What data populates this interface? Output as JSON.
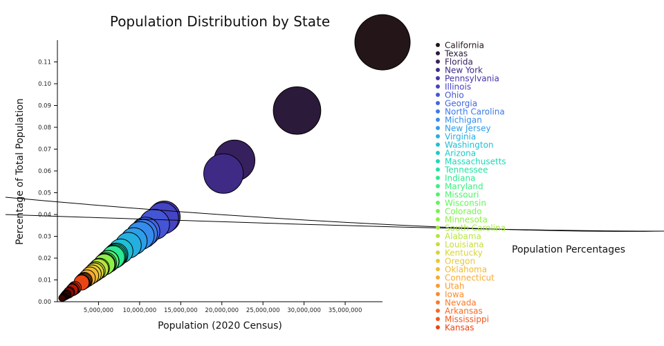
{
  "chart_data": {
    "type": "scatter",
    "title": "Population Distribution by State",
    "xlabel": "Population (2020 Census)",
    "ylabel": "Percentage of Total Population",
    "xlim": [
      0,
      39538223
    ],
    "ylim": [
      0,
      0.12
    ],
    "x_ticks": [
      5000000,
      10000000,
      15000000,
      20000000,
      25000000,
      30000000,
      35000000
    ],
    "x_tick_labels": [
      "5,000,000",
      "10,000,000",
      "15,000,000",
      "20,000,000",
      "25,000,000",
      "30,000,000",
      "35,000,000"
    ],
    "y_ticks": [
      0,
      0.01,
      0.02,
      0.03,
      0.04,
      0.05,
      0.06,
      0.07,
      0.08,
      0.09,
      0.1,
      0.11
    ],
    "y_tick_labels": [
      "0.00",
      "0.01",
      "0.02",
      "0.03",
      "0.04",
      "0.05",
      "0.06",
      "0.07",
      "0.08",
      "0.09",
      "0.10",
      "0.11"
    ],
    "annotation": "Population Percentages",
    "legend_position": "right",
    "grid": false,
    "legend_labels": [
      "California",
      "Texas",
      "Florida",
      "New York",
      "Pennsylvania",
      "Illinois",
      "Ohio",
      "Georgia",
      "North Carolina",
      "Michigan",
      "New Jersey",
      "Virginia",
      "Washington",
      "Arizona",
      "Massachusetts",
      "Tennessee",
      "Indiana",
      "Maryland",
      "Missouri",
      "Wisconsin",
      "Colorado",
      "Minnesota",
      "South Carolina",
      "Alabama",
      "Louisiana",
      "Kentucky",
      "Oregon",
      "Oklahoma",
      "Connecticut",
      "Utah",
      "Iowa",
      "Nevada",
      "Arkansas",
      "Mississippi",
      "Kansas"
    ],
    "legend_colors": [
      "#231518",
      "#2b1a3a",
      "#36205e",
      "#3f2a86",
      "#4535a8",
      "#4544c4",
      "#4455d6",
      "#4266e2",
      "#3c79ea",
      "#358cec",
      "#2d9ee8",
      "#25afe0",
      "#1fbfd4",
      "#1acdc6",
      "#1ad8b6",
      "#1fe2a5",
      "#2aea93",
      "#38f07f",
      "#4cf46c",
      "#62f45c",
      "#78f250",
      "#8ef048",
      "#a2ec42",
      "#b6e63e",
      "#c8de3a",
      "#d8d438",
      "#e6c836",
      "#f0ba34",
      "#f7aa32",
      "#fb9a2e",
      "#fd8a2a",
      "#fc7926",
      "#f86820",
      "#f2561a",
      "#e94514"
    ],
    "points": [
      {
        "x": 39538223,
        "y": 0.119
      },
      {
        "x": 29145505,
        "y": 0.0877
      },
      {
        "x": 21538187,
        "y": 0.0648
      },
      {
        "x": 20201249,
        "y": 0.0588
      },
      {
        "x": 13002700,
        "y": 0.0389
      },
      {
        "x": 12812508,
        "y": 0.0383
      },
      {
        "x": 11799448,
        "y": 0.0355
      },
      {
        "x": 10711908,
        "y": 0.0322
      },
      {
        "x": 10439388,
        "y": 0.0312
      },
      {
        "x": 10077331,
        "y": 0.0303
      },
      {
        "x": 9288994,
        "y": 0.0278
      },
      {
        "x": 8631393,
        "y": 0.0259
      },
      {
        "x": 7705281,
        "y": 0.0232
      },
      {
        "x": 7151502,
        "y": 0.0215
      },
      {
        "x": 7029917,
        "y": 0.0211
      },
      {
        "x": 6910840,
        "y": 0.0207
      },
      {
        "x": 6785528,
        "y": 0.0204
      },
      {
        "x": 6177224,
        "y": 0.0185
      },
      {
        "x": 6154913,
        "y": 0.0185
      },
      {
        "x": 5893718,
        "y": 0.0177
      },
      {
        "x": 5773714,
        "y": 0.0173
      },
      {
        "x": 5706494,
        "y": 0.0171
      },
      {
        "x": 5118425,
        "y": 0.0154
      },
      {
        "x": 5024279,
        "y": 0.0151
      },
      {
        "x": 4657757,
        "y": 0.014
      },
      {
        "x": 4505836,
        "y": 0.0135
      },
      {
        "x": 4237256,
        "y": 0.0127
      },
      {
        "x": 3959353,
        "y": 0.0119
      },
      {
        "x": 3605944,
        "y": 0.0108
      },
      {
        "x": 3271616,
        "y": 0.0098
      },
      {
        "x": 3190369,
        "y": 0.0096
      },
      {
        "x": 3104614,
        "y": 0.0093
      },
      {
        "x": 3011524,
        "y": 0.009
      },
      {
        "x": 2961279,
        "y": 0.0089
      },
      {
        "x": 2937880,
        "y": 0.0088
      },
      {
        "x": 2117522,
        "y": 0.0064
      },
      {
        "x": 1961504,
        "y": 0.0059
      },
      {
        "x": 1839106,
        "y": 0.0055
      },
      {
        "x": 1793716,
        "y": 0.0054
      },
      {
        "x": 1455271,
        "y": 0.0044
      },
      {
        "x": 1377529,
        "y": 0.0041
      },
      {
        "x": 1362359,
        "y": 0.0041
      },
      {
        "x": 1097379,
        "y": 0.0033
      },
      {
        "x": 1084225,
        "y": 0.0033
      },
      {
        "x": 989948,
        "y": 0.003
      },
      {
        "x": 886667,
        "y": 0.0027
      },
      {
        "x": 779094,
        "y": 0.0023
      },
      {
        "x": 733391,
        "y": 0.0022
      },
      {
        "x": 643077,
        "y": 0.0019
      },
      {
        "x": 576851,
        "y": 0.0017
      }
    ],
    "point_colors": [
      "#231518",
      "#2b1a3a",
      "#36205e",
      "#3f2a86",
      "#4535a8",
      "#4544c4",
      "#4455d6",
      "#4266e2",
      "#3c79ea",
      "#358cec",
      "#2d9ee8",
      "#25afe0",
      "#1fbfd4",
      "#1acdc6",
      "#1ad8b6",
      "#1fe2a5",
      "#2aea93",
      "#38f07f",
      "#4cf46c",
      "#62f45c",
      "#78f250",
      "#8ef048",
      "#a2ec42",
      "#b6e63e",
      "#c8de3a",
      "#d8d438",
      "#e6c836",
      "#f0ba34",
      "#f7aa32",
      "#fb9a2e",
      "#fd8a2a",
      "#fc7926",
      "#f86820",
      "#f2561a",
      "#e94514",
      "#de3610",
      "#d22a0c",
      "#c42008",
      "#b51806",
      "#a51204",
      "#950e03",
      "#850b02",
      "#760902",
      "#680801",
      "#5c0701",
      "#520601",
      "#4a0501",
      "#430501",
      "#3d0401",
      "#380401"
    ]
  }
}
